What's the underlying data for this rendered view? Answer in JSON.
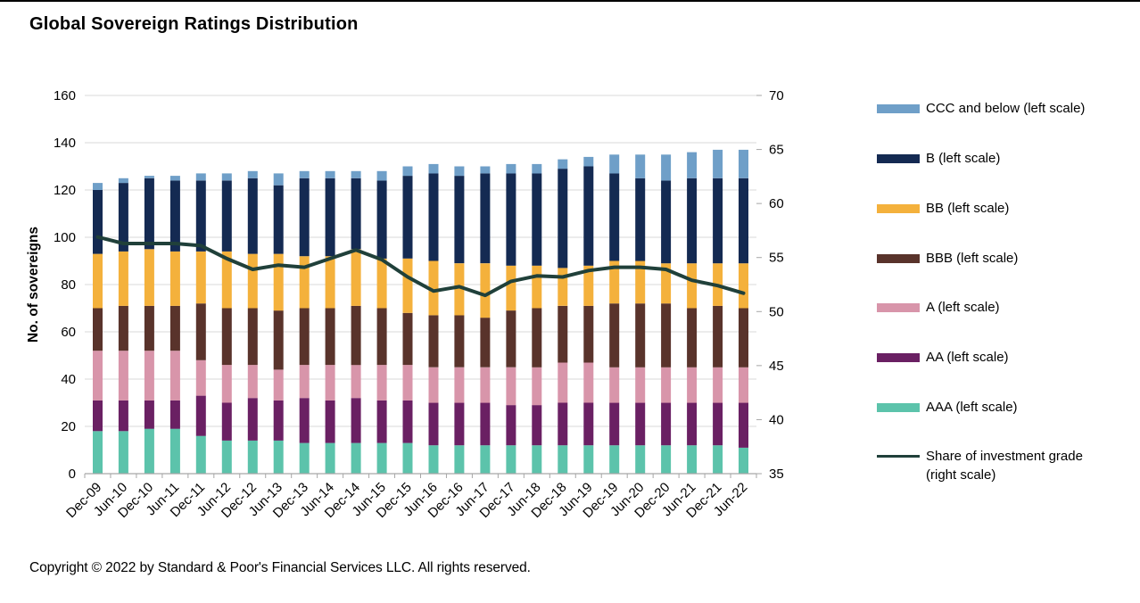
{
  "page": {
    "title": "Global Sovereign Ratings Distribution",
    "copyright": "Copyright © 2022 by Standard & Poor's Financial Services LLC. All rights reserved."
  },
  "colors": {
    "ccc_and_below": "#6f9fc8",
    "b": "#142a52",
    "bb": "#f4b13c",
    "bbb": "#59332b",
    "a": "#d895aa",
    "aa": "#6a2063",
    "aaa": "#5cc3ab",
    "ig_line": "#20403a",
    "gridline": "#d9d9d9",
    "axis": "#a6a6a6",
    "text": "#000000"
  },
  "legend": {
    "items": [
      {
        "key": "ccc_and_below",
        "label": "CCC and below (left scale)",
        "swatch": "bar"
      },
      {
        "key": "b",
        "label": "B (left scale)",
        "swatch": "bar"
      },
      {
        "key": "bb",
        "label": "BB (left scale)",
        "swatch": "bar"
      },
      {
        "key": "bbb",
        "label": "BBB (left scale)",
        "swatch": "bar"
      },
      {
        "key": "a",
        "label": "A (left scale)",
        "swatch": "bar"
      },
      {
        "key": "aa",
        "label": "AA (left scale)",
        "swatch": "bar"
      },
      {
        "key": "aaa",
        "label": "AAA (left scale)",
        "swatch": "bar"
      },
      {
        "key": "ig_line",
        "label": "Share of investment grade (right scale)",
        "swatch": "line"
      }
    ]
  },
  "chart_data": {
    "type": "bar",
    "subtype": "stacked-bar-with-line",
    "title": "Global Sovereign Ratings Distribution",
    "categories": [
      "Dec-09",
      "Jun-10",
      "Dec-10",
      "Jun-11",
      "Dec-11",
      "Jun-12",
      "Dec-12",
      "Jun-13",
      "Dec-13",
      "Jun-14",
      "Dec-14",
      "Jun-15",
      "Dec-15",
      "Jun-16",
      "Dec-16",
      "Jun-17",
      "Dec-17",
      "Jun-18",
      "Dec-18",
      "Jun-19",
      "Dec-19",
      "Jun-20",
      "Dec-20",
      "Jun-21",
      "Dec-21",
      "Jun-22"
    ],
    "bar_series": [
      {
        "name": "AAA (left scale)",
        "color_key": "aaa",
        "values": [
          18,
          18,
          19,
          19,
          16,
          14,
          14,
          14,
          13,
          13,
          13,
          13,
          13,
          12,
          12,
          12,
          12,
          12,
          12,
          12,
          12,
          12,
          12,
          12,
          12,
          11
        ]
      },
      {
        "name": "AA (left scale)",
        "color_key": "aa",
        "values": [
          13,
          13,
          12,
          12,
          17,
          16,
          18,
          17,
          19,
          18,
          19,
          18,
          18,
          18,
          18,
          18,
          17,
          17,
          18,
          18,
          18,
          18,
          18,
          18,
          18,
          19
        ]
      },
      {
        "name": "A (left scale)",
        "color_key": "a",
        "values": [
          21,
          21,
          21,
          21,
          15,
          16,
          14,
          13,
          14,
          15,
          14,
          15,
          15,
          15,
          15,
          15,
          16,
          16,
          17,
          17,
          15,
          15,
          15,
          15,
          15,
          15
        ]
      },
      {
        "name": "BBB (left scale)",
        "color_key": "bbb",
        "values": [
          18,
          19,
          19,
          19,
          24,
          24,
          24,
          25,
          24,
          24,
          25,
          24,
          22,
          22,
          22,
          21,
          24,
          25,
          24,
          24,
          27,
          27,
          27,
          25,
          26,
          25
        ]
      },
      {
        "name": "BB (left scale)",
        "color_key": "bb",
        "values": [
          23,
          23,
          24,
          23,
          22,
          24,
          23,
          24,
          22,
          22,
          24,
          21,
          23,
          23,
          22,
          23,
          19,
          18,
          16,
          17,
          18,
          18,
          17,
          19,
          18,
          19
        ]
      },
      {
        "name": "B (left scale)",
        "color_key": "b",
        "values": [
          27,
          29,
          30,
          30,
          30,
          30,
          32,
          29,
          33,
          33,
          30,
          33,
          35,
          37,
          37,
          38,
          39,
          39,
          42,
          42,
          37,
          35,
          35,
          36,
          36,
          36
        ]
      },
      {
        "name": "CCC and below (left scale)",
        "color_key": "ccc_and_below",
        "values": [
          3,
          2,
          1,
          2,
          3,
          3,
          3,
          5,
          3,
          3,
          3,
          4,
          4,
          4,
          4,
          3,
          4,
          4,
          4,
          4,
          8,
          10,
          11,
          11,
          12,
          12
        ]
      }
    ],
    "line_series": {
      "name": "Share of investment grade (right scale)",
      "color_key": "ig_line",
      "values": [
        56.9,
        56.3,
        56.3,
        56.3,
        56.1,
        54.9,
        53.9,
        54.3,
        54.1,
        54.9,
        55.7,
        54.8,
        53.2,
        51.9,
        52.3,
        51.5,
        52.8,
        53.3,
        53.2,
        53.8,
        54.1,
        54.1,
        53.9,
        52.9,
        52.4,
        51.7
      ]
    },
    "left_axis": {
      "label": "No. of sovereigns",
      "min": 0,
      "max": 160,
      "step": 20,
      "ticks": [
        0,
        20,
        40,
        60,
        80,
        100,
        120,
        140,
        160
      ]
    },
    "right_axis": {
      "label": "",
      "min": 35,
      "max": 70,
      "step": 5,
      "ticks": [
        35,
        40,
        45,
        50,
        55,
        60,
        65,
        70
      ]
    },
    "grid": true,
    "legend_position": "right"
  }
}
